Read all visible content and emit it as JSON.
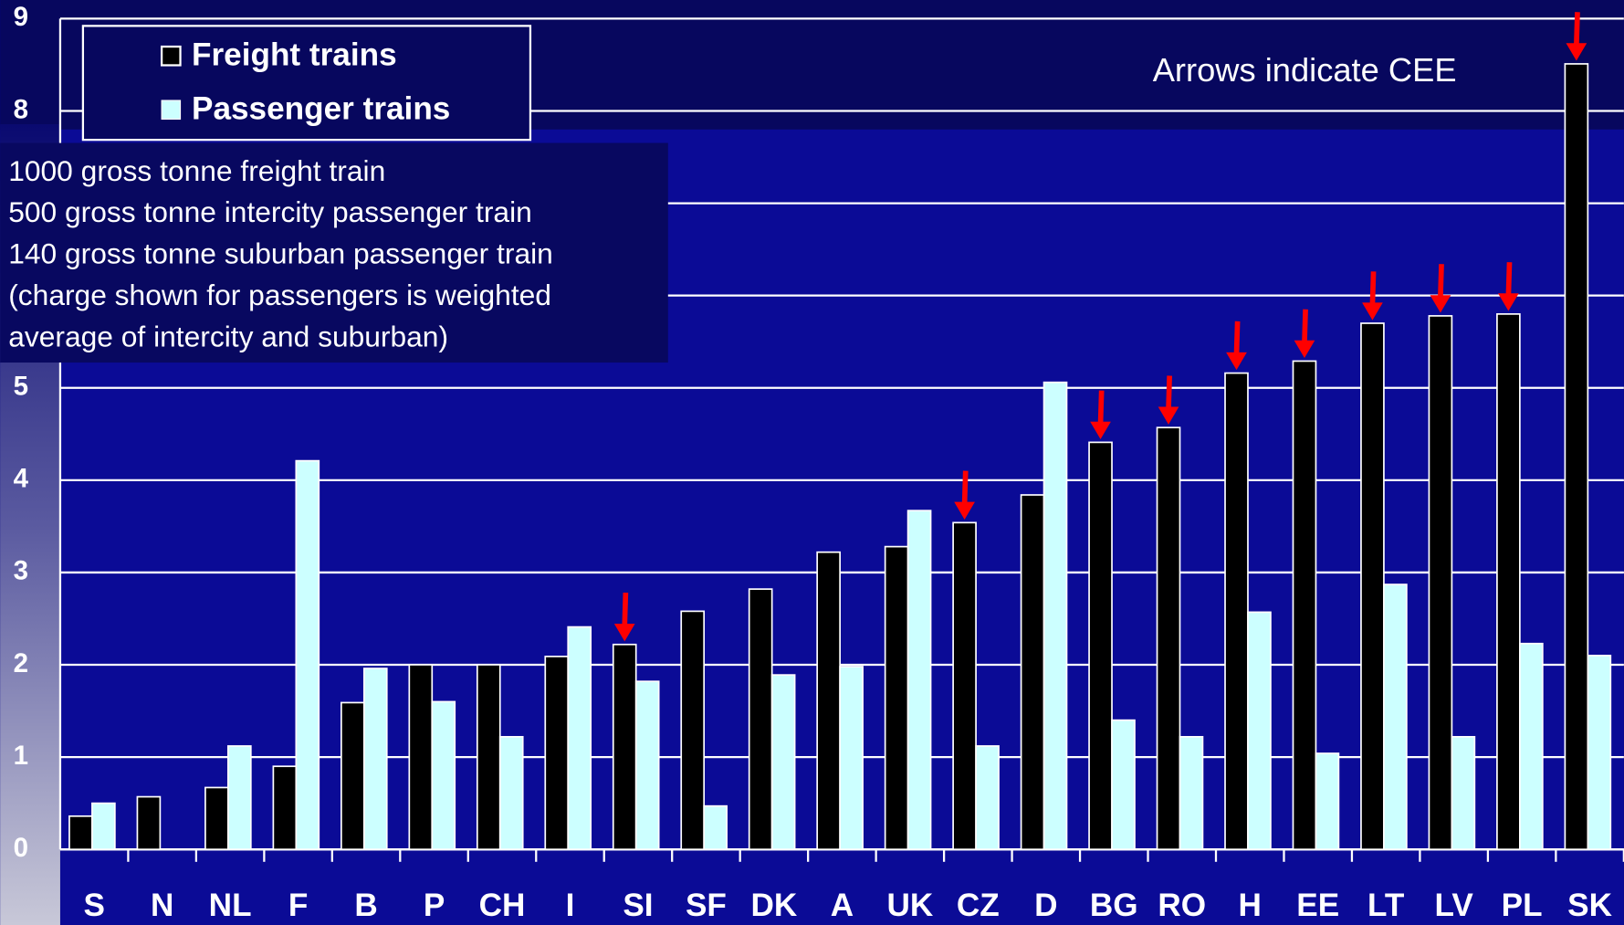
{
  "chart_data": {
    "type": "bar",
    "categories": [
      "S",
      "N",
      "NL",
      "F",
      "B",
      "P",
      "CH",
      "I",
      "SI",
      "SF",
      "DK",
      "A",
      "UK",
      "CZ",
      "D",
      "BG",
      "RO",
      "H",
      "EE",
      "LT",
      "LV",
      "PL",
      "SK"
    ],
    "series": [
      {
        "name": "Freight trains",
        "color": "#000000",
        "values": [
          0.36,
          0.57,
          0.67,
          0.9,
          1.59,
          2.0,
          2.0,
          2.09,
          2.22,
          2.58,
          2.82,
          3.22,
          3.28,
          3.54,
          3.84,
          4.41,
          4.57,
          5.16,
          5.29,
          5.7,
          5.78,
          5.8,
          8.51
        ]
      },
      {
        "name": "Passenger trains",
        "color": "#ccffff",
        "values": [
          0.5,
          null,
          1.12,
          4.21,
          1.96,
          1.6,
          1.22,
          2.41,
          1.82,
          0.47,
          1.89,
          1.98,
          3.67,
          1.12,
          5.06,
          1.4,
          1.22,
          2.57,
          1.04,
          2.87,
          1.22,
          2.23,
          2.1
        ]
      }
    ],
    "ylim": [
      0,
      9
    ],
    "yticks": [
      0,
      1,
      2,
      3,
      4,
      5,
      6,
      7,
      8,
      9
    ],
    "grid": true,
    "annotation": "Arrows indicate CEE",
    "arrow_categories": [
      "SI",
      "CZ",
      "BG",
      "RO",
      "H",
      "EE",
      "LT",
      "LV",
      "PL",
      "SK"
    ],
    "arrow_color": "#ff0000",
    "note": [
      "1000 gross tonne freight train",
      "500 gross tonne intercity passenger train",
      "140 gross tonne suburban passenger train",
      "(charge shown for passengers is weighted",
      "average of intercity and suburban)"
    ]
  }
}
